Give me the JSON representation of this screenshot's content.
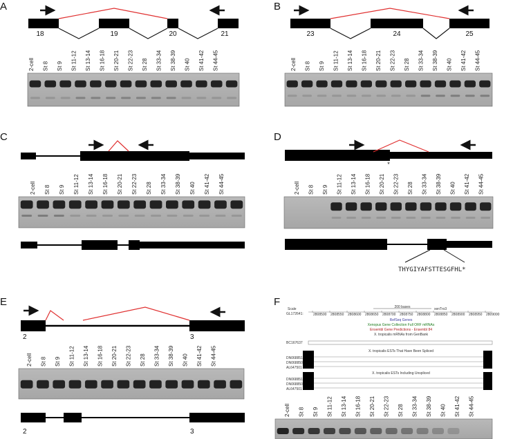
{
  "lanes": [
    "2-cell",
    "St 8",
    "St 9",
    "St 11-12",
    "St 13-14",
    "St 16-18",
    "St 20-21",
    "St 22-23",
    "St 28",
    "St 33-34",
    "St 38-39",
    "St 40",
    "St 41-42",
    "St 44-45"
  ],
  "panels": {
    "A": {
      "label": "A",
      "exons": [
        "18",
        "19",
        "20",
        "21"
      ]
    },
    "B": {
      "label": "B",
      "exons": [
        "23",
        "24",
        "25"
      ]
    },
    "C": {
      "label": "C"
    },
    "D": {
      "label": "D",
      "marker": "*",
      "peptide": "THYGIYAFSTTESGFHL*"
    },
    "E": {
      "label": "E",
      "exons": [
        "2",
        "3"
      ]
    },
    "F": {
      "label": "F",
      "browser": {
        "scale_label": "Scale",
        "scale_value": "200 bases",
        "assembly": "xenTro3",
        "scaffold": "GL172641:",
        "coords": [
          "2808500",
          "2808550",
          "2808600",
          "2808650",
          "2808700",
          "2808750",
          "2808800",
          "2808850",
          "2808900",
          "2808950",
          "2809000"
        ],
        "tracks": {
          "refseq": "RefSeq Genes",
          "xgc": "Xenopus Gene Collection Full ORF mRNAs",
          "ensembl": "Ensembl Gene Predictions - Ensembl 84",
          "genbank": "X. tropicalis mRNAs from GenBank",
          "spliced": "X. tropicalis ESTs That Have Been Spliced",
          "unspliced": "X. tropicalis ESTs Including Unspliced"
        },
        "mrna": "BC167637",
        "ests_spliced": [
          "DN068851",
          "DN068850",
          "AL647501"
        ],
        "ests_unspliced": [
          "DN068851",
          "DN068850",
          "AL647501"
        ]
      }
    }
  }
}
